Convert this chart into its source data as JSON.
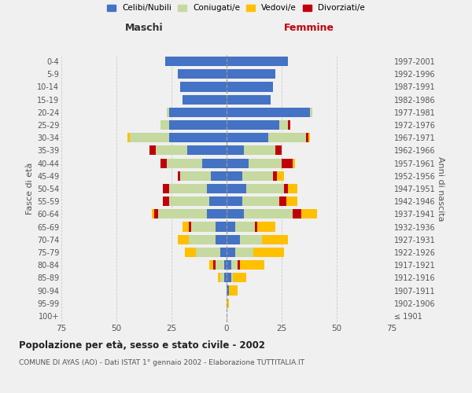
{
  "age_groups": [
    "100+",
    "95-99",
    "90-94",
    "85-89",
    "80-84",
    "75-79",
    "70-74",
    "65-69",
    "60-64",
    "55-59",
    "50-54",
    "45-49",
    "40-44",
    "35-39",
    "30-34",
    "25-29",
    "20-24",
    "15-19",
    "10-14",
    "5-9",
    "0-4"
  ],
  "birth_years": [
    "≤ 1901",
    "1902-1906",
    "1907-1911",
    "1912-1916",
    "1917-1921",
    "1922-1926",
    "1927-1931",
    "1932-1936",
    "1937-1941",
    "1942-1946",
    "1947-1951",
    "1952-1956",
    "1957-1961",
    "1962-1966",
    "1967-1971",
    "1972-1976",
    "1977-1981",
    "1982-1986",
    "1987-1991",
    "1992-1996",
    "1997-2001"
  ],
  "maschi": {
    "celibi": [
      0,
      0,
      0,
      1,
      1,
      3,
      5,
      5,
      9,
      8,
      9,
      7,
      11,
      18,
      26,
      26,
      26,
      20,
      21,
      22,
      28
    ],
    "coniugati": [
      0,
      0,
      0,
      2,
      4,
      11,
      12,
      11,
      22,
      18,
      17,
      14,
      16,
      14,
      18,
      4,
      1,
      0,
      0,
      0,
      0
    ],
    "vedovi": [
      0,
      0,
      0,
      1,
      2,
      5,
      5,
      3,
      1,
      0,
      0,
      0,
      0,
      0,
      1,
      0,
      0,
      0,
      0,
      0,
      0
    ],
    "divorziati": [
      0,
      0,
      0,
      0,
      1,
      0,
      0,
      1,
      2,
      3,
      3,
      1,
      3,
      3,
      0,
      0,
      0,
      0,
      0,
      0,
      0
    ]
  },
  "femmine": {
    "nubili": [
      0,
      0,
      1,
      2,
      2,
      4,
      6,
      4,
      8,
      7,
      9,
      7,
      10,
      8,
      19,
      24,
      38,
      20,
      21,
      22,
      28
    ],
    "coniugate": [
      0,
      0,
      0,
      1,
      3,
      8,
      10,
      9,
      22,
      17,
      17,
      14,
      15,
      14,
      17,
      4,
      1,
      0,
      0,
      0,
      0
    ],
    "vedove": [
      0,
      1,
      4,
      6,
      11,
      14,
      12,
      8,
      7,
      5,
      4,
      3,
      1,
      0,
      1,
      0,
      0,
      0,
      0,
      0,
      0
    ],
    "divorziate": [
      0,
      0,
      0,
      0,
      1,
      0,
      0,
      1,
      4,
      3,
      2,
      2,
      5,
      3,
      1,
      1,
      0,
      0,
      0,
      0,
      0
    ]
  },
  "colors": {
    "celibi": "#4472c4",
    "coniugati": "#c5d9a0",
    "vedovi": "#ffc000",
    "divorziati": "#c0000a"
  },
  "xlim": 75,
  "title": "Popolazione per età, sesso e stato civile - 2002",
  "subtitle": "COMUNE DI AYAS (AO) - Dati ISTAT 1° gennaio 2002 - Elaborazione TUTTITALIA.IT",
  "xlabel_left": "Maschi",
  "xlabel_right": "Femmine",
  "ylabel_left": "Fasce di età",
  "ylabel_right": "Anni di nascita",
  "legend_labels": [
    "Celibi/Nubili",
    "Coniugati/e",
    "Vedovi/e",
    "Divorziati/e"
  ],
  "bg_color": "#f0f0f0",
  "bar_height": 0.75
}
